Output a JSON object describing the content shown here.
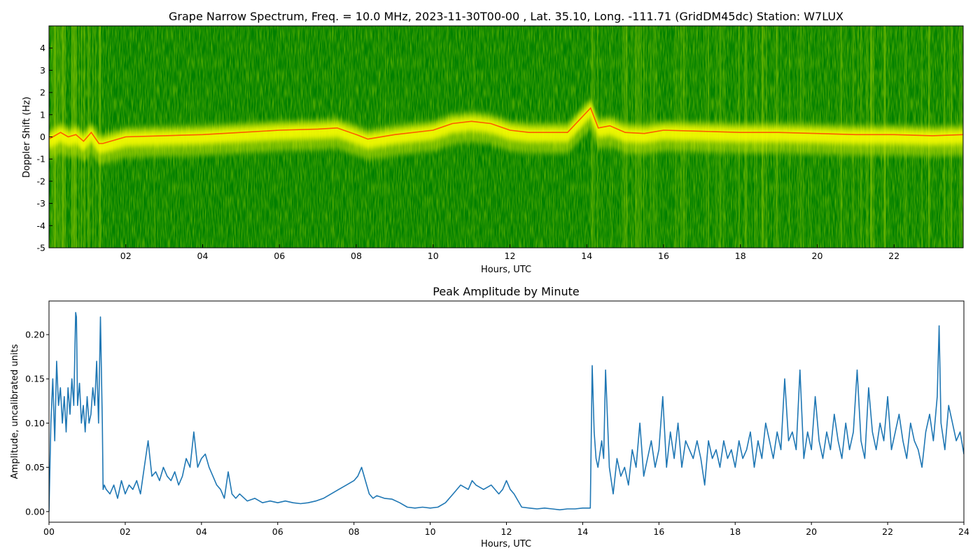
{
  "chart_data": [
    {
      "type": "heatmap",
      "title": "Grape Narrow Spectrum, Freq. = 10.0 MHz, 2023-11-30T00-00 , Lat.  35.10, Long. -111.71 (GridDM45dc) Station: W7LUX",
      "xlabel": "Hours, UTC",
      "ylabel": "Doppler Shift (Hz)",
      "xlim": [
        0,
        23.8
      ],
      "ylim": [
        -5,
        5
      ],
      "x_ticks": [
        "02",
        "04",
        "06",
        "08",
        "10",
        "12",
        "14",
        "16",
        "18",
        "20",
        "22"
      ],
      "y_ticks": [
        "4",
        "3",
        "2",
        "1",
        "0",
        "-1",
        "-2",
        "-3",
        "-4",
        "-5"
      ],
      "colors": {
        "background": "#007f00",
        "mid": "#ffff00",
        "peak": "#ff4a00"
      },
      "doppler_trace": {
        "x": [
          0,
          0.3,
          0.5,
          0.7,
          0.9,
          1.1,
          1.3,
          1.4,
          2,
          3,
          4,
          5,
          6,
          7,
          7.5,
          8,
          8.3,
          9,
          10,
          10.5,
          11,
          11.5,
          12,
          12.5,
          13,
          13.5,
          14.1,
          14.3,
          14.6,
          15,
          15.5,
          16,
          17,
          18,
          19,
          20,
          21,
          22,
          23,
          23.8
        ],
        "y": [
          -0.1,
          0.2,
          0.0,
          0.1,
          -0.2,
          0.2,
          -0.3,
          -0.3,
          0.0,
          0.05,
          0.1,
          0.2,
          0.3,
          0.35,
          0.4,
          0.1,
          -0.1,
          0.1,
          0.3,
          0.6,
          0.7,
          0.6,
          0.3,
          0.2,
          0.2,
          0.2,
          1.3,
          0.4,
          0.5,
          0.2,
          0.15,
          0.3,
          0.25,
          0.2,
          0.2,
          0.15,
          0.1,
          0.1,
          0.05,
          0.1
        ]
      }
    },
    {
      "type": "line",
      "title": "Peak Amplitude by Minute",
      "xlabel": "Hours, UTC",
      "ylabel": "Amplitude, uncalibrated units",
      "xlim": [
        0,
        24
      ],
      "ylim": [
        -0.012,
        0.238
      ],
      "x_ticks": [
        "00",
        "02",
        "04",
        "06",
        "08",
        "10",
        "12",
        "14",
        "16",
        "18",
        "20",
        "22",
        "24"
      ],
      "y_ticks": [
        "0.00",
        "0.05",
        "0.10",
        "0.15",
        "0.20"
      ],
      "line_color": "#1f77b4",
      "series": [
        {
          "x": [
            0,
            0.05,
            0.1,
            0.15,
            0.2,
            0.25,
            0.3,
            0.35,
            0.4,
            0.45,
            0.5,
            0.55,
            0.6,
            0.65,
            0.7,
            0.72,
            0.75,
            0.8,
            0.85,
            0.9,
            0.95,
            1.0,
            1.05,
            1.1,
            1.15,
            1.2,
            1.25,
            1.3,
            1.35,
            1.4,
            1.42,
            1.45,
            1.5,
            1.6,
            1.7,
            1.8,
            1.9,
            2.0,
            2.1,
            2.2,
            2.3,
            2.4,
            2.5,
            2.6,
            2.7,
            2.8,
            2.9,
            3.0,
            3.1,
            3.2,
            3.3,
            3.4,
            3.5,
            3.6,
            3.7,
            3.8,
            3.9,
            4.0,
            4.1,
            4.2,
            4.3,
            4.4,
            4.5,
            4.6,
            4.7,
            4.8,
            4.9,
            5.0,
            5.2,
            5.4,
            5.6,
            5.8,
            6.0,
            6.2,
            6.4,
            6.6,
            6.8,
            7.0,
            7.2,
            7.4,
            7.6,
            7.8,
            8.0,
            8.1,
            8.2,
            8.3,
            8.4,
            8.5,
            8.6,
            8.8,
            9.0,
            9.2,
            9.4,
            9.6,
            9.8,
            10.0,
            10.2,
            10.4,
            10.6,
            10.8,
            11.0,
            11.1,
            11.2,
            11.4,
            11.6,
            11.8,
            11.9,
            12.0,
            12.1,
            12.2,
            12.4,
            12.6,
            12.8,
            13.0,
            13.2,
            13.4,
            13.6,
            13.8,
            14.0,
            14.1,
            14.2,
            14.25,
            14.3,
            14.35,
            14.4,
            14.5,
            14.55,
            14.6,
            14.7,
            14.8,
            14.9,
            15.0,
            15.1,
            15.2,
            15.3,
            15.4,
            15.5,
            15.6,
            15.7,
            15.8,
            15.9,
            16.0,
            16.1,
            16.2,
            16.3,
            16.4,
            16.5,
            16.6,
            16.7,
            16.8,
            16.9,
            17.0,
            17.1,
            17.2,
            17.3,
            17.4,
            17.5,
            17.6,
            17.7,
            17.8,
            17.9,
            18.0,
            18.1,
            18.2,
            18.3,
            18.4,
            18.5,
            18.6,
            18.7,
            18.8,
            18.9,
            19.0,
            19.1,
            19.2,
            19.3,
            19.4,
            19.5,
            19.6,
            19.7,
            19.8,
            19.9,
            20.0,
            20.1,
            20.2,
            20.3,
            20.4,
            20.5,
            20.6,
            20.7,
            20.8,
            20.9,
            21.0,
            21.1,
            21.2,
            21.3,
            21.4,
            21.5,
            21.6,
            21.7,
            21.8,
            21.9,
            22.0,
            22.1,
            22.2,
            22.3,
            22.4,
            22.5,
            22.6,
            22.7,
            22.8,
            22.9,
            23.0,
            23.1,
            23.2,
            23.3,
            23.35,
            23.4,
            23.5,
            23.6,
            23.7,
            23.8,
            23.9,
            24.0
          ],
          "y": [
            0.0,
            0.1,
            0.15,
            0.08,
            0.17,
            0.12,
            0.14,
            0.1,
            0.13,
            0.09,
            0.14,
            0.11,
            0.15,
            0.12,
            0.225,
            0.22,
            0.12,
            0.145,
            0.1,
            0.12,
            0.09,
            0.13,
            0.1,
            0.11,
            0.14,
            0.12,
            0.17,
            0.1,
            0.22,
            0.1,
            0.025,
            0.03,
            0.025,
            0.02,
            0.03,
            0.015,
            0.035,
            0.02,
            0.03,
            0.025,
            0.035,
            0.02,
            0.05,
            0.08,
            0.04,
            0.045,
            0.035,
            0.05,
            0.04,
            0.035,
            0.045,
            0.03,
            0.04,
            0.06,
            0.05,
            0.09,
            0.05,
            0.06,
            0.065,
            0.05,
            0.04,
            0.03,
            0.025,
            0.015,
            0.045,
            0.02,
            0.015,
            0.02,
            0.012,
            0.015,
            0.01,
            0.012,
            0.01,
            0.012,
            0.01,
            0.009,
            0.01,
            0.012,
            0.015,
            0.02,
            0.025,
            0.03,
            0.035,
            0.04,
            0.05,
            0.035,
            0.02,
            0.015,
            0.018,
            0.015,
            0.014,
            0.01,
            0.005,
            0.004,
            0.005,
            0.004,
            0.005,
            0.01,
            0.02,
            0.03,
            0.025,
            0.035,
            0.03,
            0.025,
            0.03,
            0.02,
            0.025,
            0.035,
            0.025,
            0.02,
            0.005,
            0.004,
            0.003,
            0.004,
            0.003,
            0.002,
            0.003,
            0.003,
            0.004,
            0.004,
            0.004,
            0.165,
            0.09,
            0.06,
            0.05,
            0.08,
            0.06,
            0.16,
            0.05,
            0.02,
            0.06,
            0.04,
            0.05,
            0.03,
            0.07,
            0.05,
            0.1,
            0.04,
            0.06,
            0.08,
            0.05,
            0.07,
            0.13,
            0.05,
            0.09,
            0.06,
            0.1,
            0.05,
            0.08,
            0.07,
            0.06,
            0.08,
            0.06,
            0.03,
            0.08,
            0.06,
            0.07,
            0.05,
            0.08,
            0.06,
            0.07,
            0.05,
            0.08,
            0.06,
            0.07,
            0.09,
            0.05,
            0.08,
            0.06,
            0.1,
            0.08,
            0.06,
            0.09,
            0.07,
            0.15,
            0.08,
            0.09,
            0.07,
            0.16,
            0.06,
            0.09,
            0.07,
            0.13,
            0.08,
            0.06,
            0.09,
            0.07,
            0.11,
            0.08,
            0.06,
            0.1,
            0.07,
            0.09,
            0.16,
            0.08,
            0.06,
            0.14,
            0.09,
            0.07,
            0.1,
            0.08,
            0.13,
            0.07,
            0.09,
            0.11,
            0.08,
            0.06,
            0.1,
            0.08,
            0.07,
            0.05,
            0.09,
            0.11,
            0.08,
            0.13,
            0.21,
            0.1,
            0.07,
            0.12,
            0.1,
            0.08,
            0.09,
            0.065
          ]
        }
      ]
    }
  ]
}
